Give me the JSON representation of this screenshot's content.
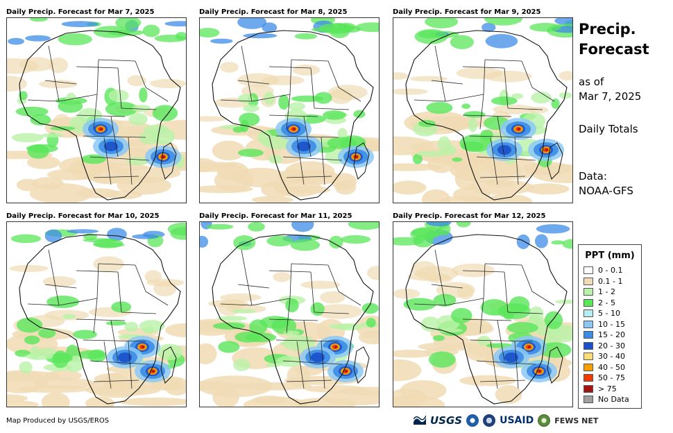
{
  "panels": [
    {
      "title": "Daily Precip. Forecast for Mar 7, 2025",
      "rain_focus": "central"
    },
    {
      "title": "Daily Precip. Forecast for Mar 8, 2025",
      "rain_focus": "central"
    },
    {
      "title": "Daily Precip. Forecast for Mar 9, 2025",
      "rain_focus": "east"
    },
    {
      "title": "Daily Precip. Forecast for Mar 10, 2025",
      "rain_focus": "southeast"
    },
    {
      "title": "Daily Precip. Forecast for Mar 11, 2025",
      "rain_focus": "southeast"
    },
    {
      "title": "Daily Precip. Forecast for Mar 12, 2025",
      "rain_focus": "southeast"
    }
  ],
  "side": {
    "title_line1": "Precip.",
    "title_line2": "Forecast",
    "asof_line1": "as of",
    "asof_line2": "Mar 7, 2025",
    "totals": "Daily Totals",
    "data_line1": "Data:",
    "data_line2": "NOAA-GFS"
  },
  "legend": {
    "title": "PPT (mm)",
    "items": [
      {
        "label": "0 - 0.1",
        "color": "#ffffff"
      },
      {
        "label": "0.1 - 1",
        "color": "#f0dbb4"
      },
      {
        "label": "1 - 2",
        "color": "#b9f2a8"
      },
      {
        "label": "2 - 5",
        "color": "#59e65a"
      },
      {
        "label": "5 - 10",
        "color": "#b4f0f0"
      },
      {
        "label": "10 - 15",
        "color": "#8cc8f5"
      },
      {
        "label": "15 - 20",
        "color": "#3c8ce6"
      },
      {
        "label": "20 - 30",
        "color": "#1a50c8"
      },
      {
        "label": "30 - 40",
        "color": "#fadc78"
      },
      {
        "label": "40 - 50",
        "color": "#f5a000"
      },
      {
        "label": "50 - 75",
        "color": "#f03c00"
      },
      {
        "label": "> 75",
        "color": "#a01414"
      },
      {
        "label": "No Data",
        "color": "#a0a0a0"
      }
    ]
  },
  "credit": "Map Produced by USGS/EROS",
  "logos": {
    "usgs": "USGS",
    "usaid": "USAID",
    "fews": "FEWS NET",
    "usgs_icon": "usgs-wave-icon",
    "noaa_icon": "noaa-icon",
    "dhs_icon": "dhs-seal-icon",
    "fews_icon": "fews-globe-icon"
  }
}
